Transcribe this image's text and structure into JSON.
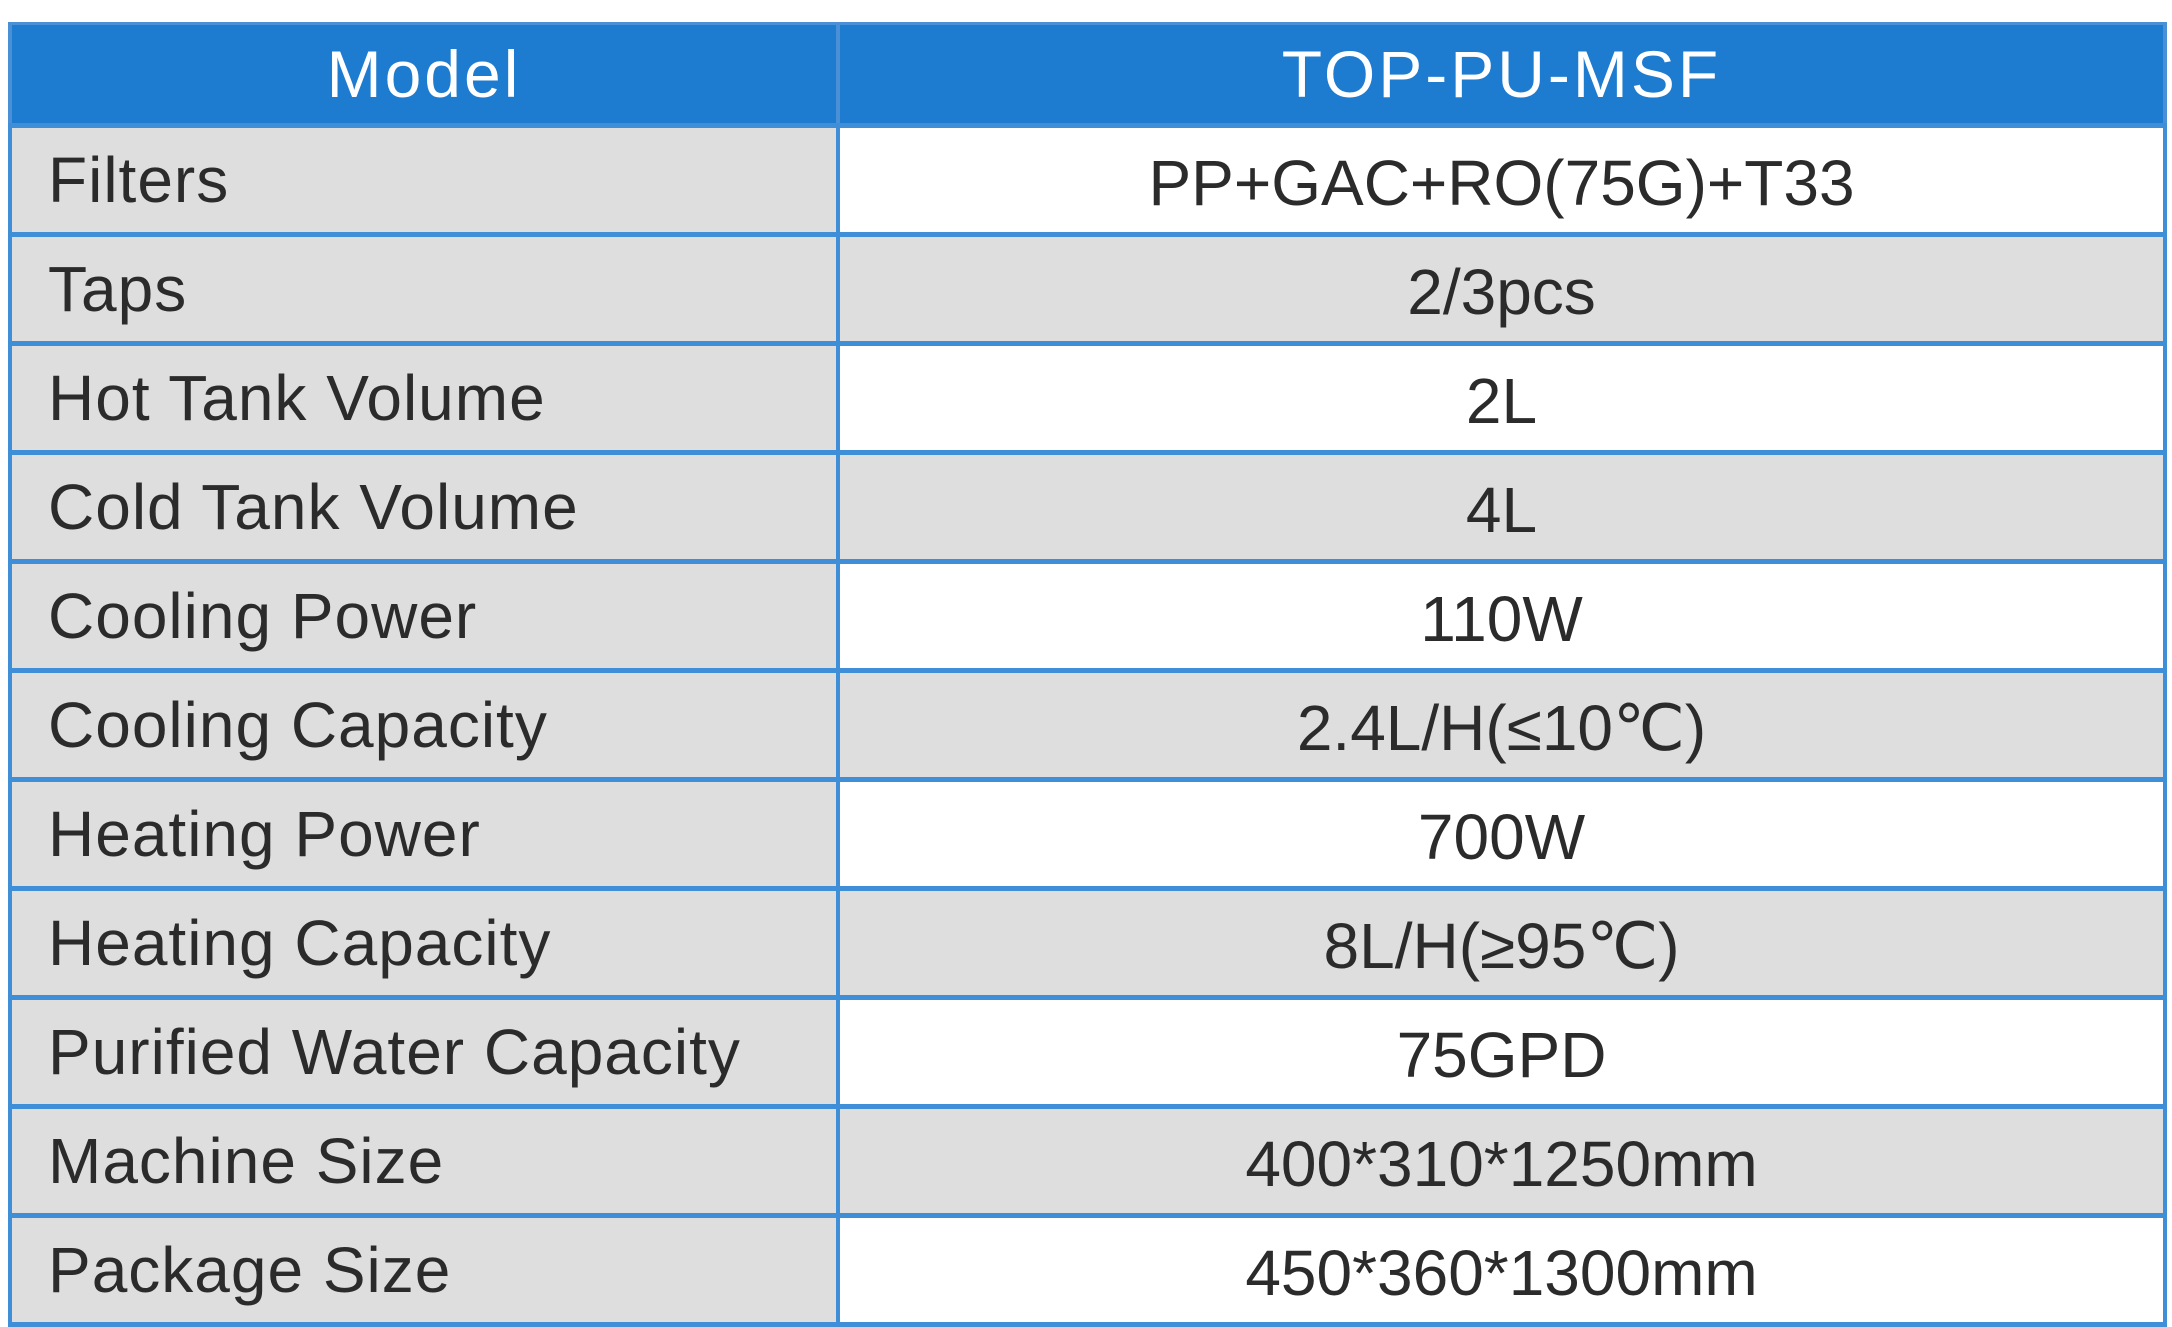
{
  "header": {
    "label": "Model",
    "value": "TOP-PU-MSF"
  },
  "rows": [
    {
      "label": "Filters",
      "value": "PP+GAC+RO(75G)+T33"
    },
    {
      "label": "Taps",
      "value": "2/3pcs"
    },
    {
      "label": "Hot Tank Volume",
      "value": "2L"
    },
    {
      "label": "Cold Tank Volume",
      "value": "4L"
    },
    {
      "label": "Cooling Power",
      "value": "110W"
    },
    {
      "label": "Cooling Capacity",
      "value": "2.4L/H(≤10℃)"
    },
    {
      "label": "Heating Power",
      "value": "700W"
    },
    {
      "label": "Heating Capacity",
      "value": "8L/H(≥95℃)"
    },
    {
      "label": "Purified Water Capacity",
      "value": "75GPD"
    },
    {
      "label": "Machine Size",
      "value": "400*310*1250mm"
    },
    {
      "label": "Package Size",
      "value": "450*360*1300mm"
    }
  ],
  "colors": {
    "header_bg": "#1d7bd0",
    "border": "#3f8fd8",
    "label_bg": "#dedede",
    "text": "#2b2b2b"
  }
}
